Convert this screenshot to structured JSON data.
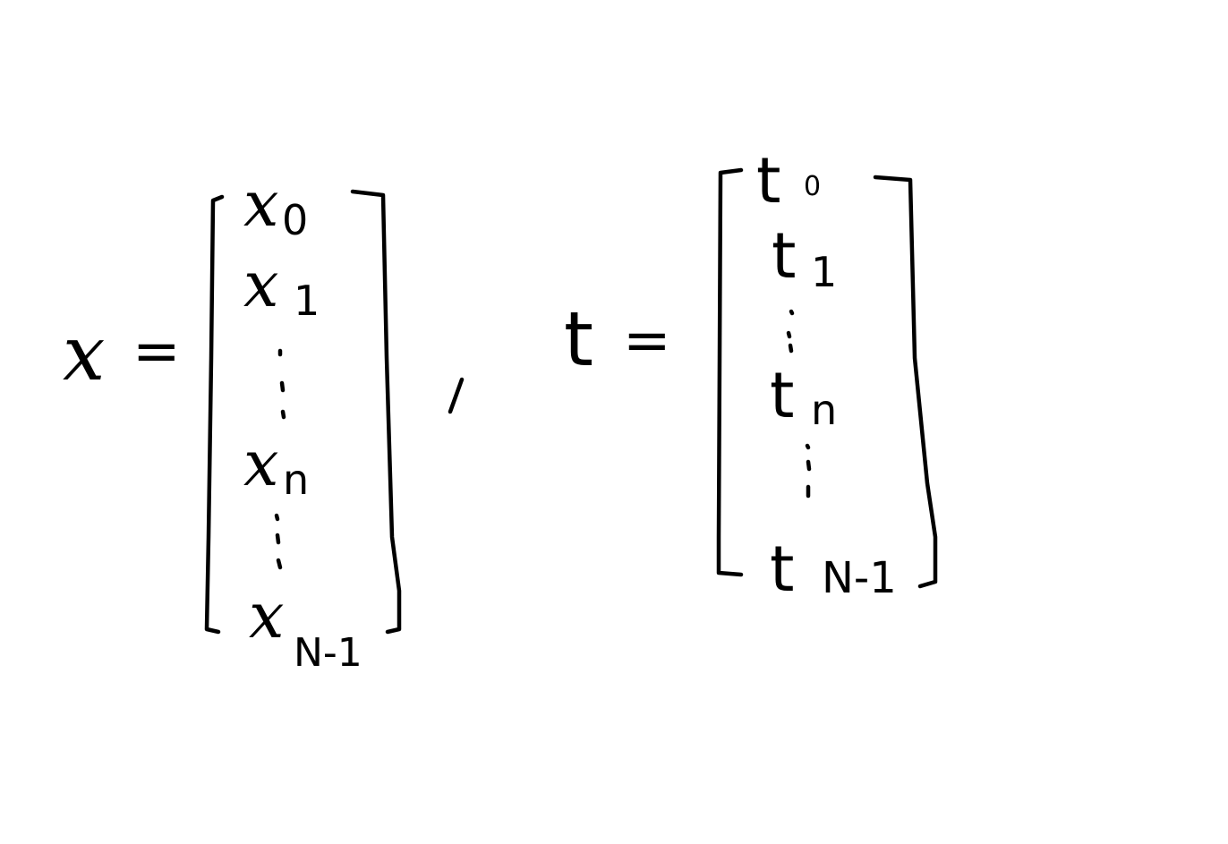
{
  "equations": [
    {
      "lhs": "x",
      "equals": "=",
      "entries": [
        {
          "base": "x",
          "sub": "0"
        },
        {
          "base": "x",
          "sub": "1"
        },
        {
          "ellipsis": true
        },
        {
          "base": "x",
          "sub": "n"
        },
        {
          "ellipsis": true
        },
        {
          "base": "x",
          "sub": "N-1"
        }
      ]
    },
    {
      "lhs": "t",
      "equals": "=",
      "entries": [
        {
          "base": "t",
          "sub": "0"
        },
        {
          "base": "t",
          "sub": "1"
        },
        {
          "ellipsis": true
        },
        {
          "base": "t",
          "sub": "n"
        },
        {
          "ellipsis": true
        },
        {
          "base": "t",
          "sub": "N-1"
        }
      ]
    }
  ],
  "separator": ",",
  "ink_color": "#000000",
  "background_color": "#ffffff"
}
